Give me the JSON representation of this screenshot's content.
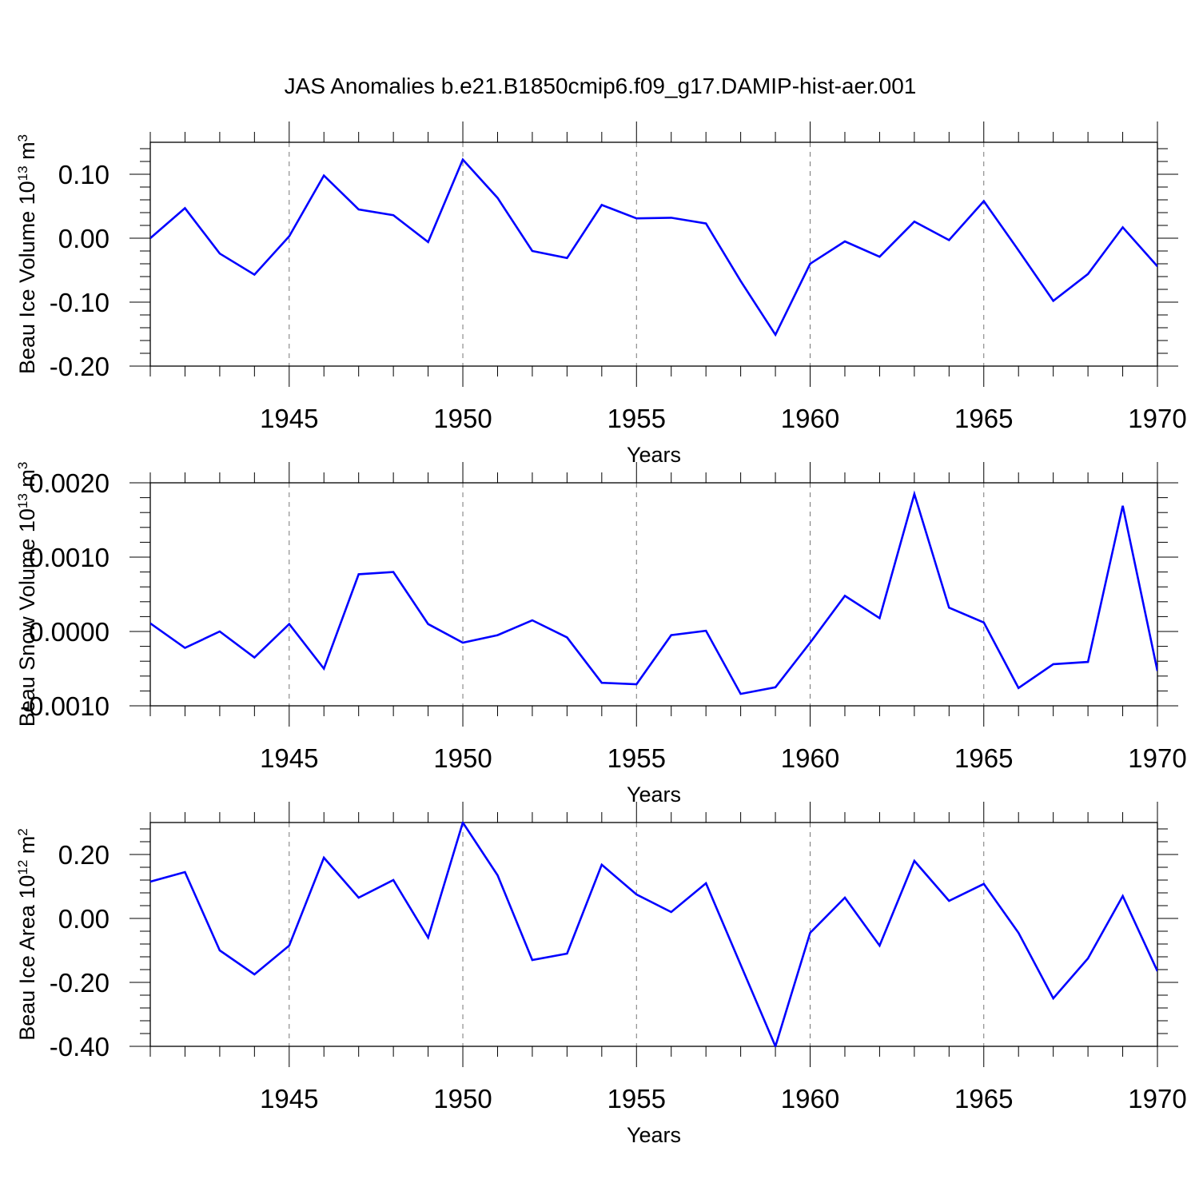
{
  "title": "JAS Anomalies b.e21.B1850cmip6.f09_g17.DAMIP-hist-aer.001",
  "line_color": "#0000ff",
  "chart_data": [
    {
      "type": "line",
      "title": "JAS Anomalies b.e21.B1850cmip6.f09_g17.DAMIP-hist-aer.001",
      "xlabel": "Years",
      "ylabel": {
        "text": "Beau Ice Volume 10",
        "exp": "13",
        "unit": " m",
        "unit_exp": "3"
      },
      "xlim": [
        1941,
        1970
      ],
      "ylim": [
        -0.2,
        0.15
      ],
      "yticks": [
        0.1,
        0.0,
        -0.1,
        -0.2
      ],
      "ytick_labels": [
        "0.10",
        "0.00",
        "-0.10",
        "-0.20"
      ],
      "ytick_minor": 0.02,
      "xticks": [
        1945,
        1950,
        1955,
        1960,
        1965,
        1970
      ],
      "xtick_labels": [
        "1945",
        "1950",
        "1955",
        "1960",
        "1965",
        "1970"
      ],
      "grid": "vertical dashed at major x ticks",
      "x": [
        1941,
        1942,
        1943,
        1944,
        1945,
        1946,
        1947,
        1948,
        1949,
        1950,
        1951,
        1952,
        1953,
        1954,
        1955,
        1956,
        1957,
        1958,
        1959,
        1960,
        1961,
        1962,
        1963,
        1964,
        1965,
        1966,
        1967,
        1968,
        1969,
        1970
      ],
      "series": [
        {
          "name": "Beau Ice Volume",
          "values": [
            0.0,
            0.047,
            -0.024,
            -0.057,
            0.003,
            0.098,
            0.045,
            0.036,
            -0.006,
            0.123,
            0.063,
            -0.02,
            -0.031,
            0.052,
            0.031,
            0.032,
            0.023,
            -0.067,
            -0.151,
            -0.04,
            -0.005,
            -0.029,
            0.026,
            -0.003,
            0.058,
            -0.019,
            -0.098,
            -0.056,
            0.017,
            -0.044
          ]
        }
      ]
    },
    {
      "type": "line",
      "xlabel": "Years",
      "ylabel": {
        "text": "Beau Snow Volume 10",
        "exp": "13",
        "unit": " m",
        "unit_exp": "3"
      },
      "xlim": [
        1941,
        1970
      ],
      "ylim": [
        -0.001,
        0.002
      ],
      "yticks": [
        0.002,
        0.001,
        0.0,
        -0.001
      ],
      "ytick_labels": [
        "0.0020",
        "0.0010",
        "0.0000",
        "-0.0010"
      ],
      "ytick_minor": 0.0002,
      "xticks": [
        1945,
        1950,
        1955,
        1960,
        1965,
        1970
      ],
      "xtick_labels": [
        "1945",
        "1950",
        "1955",
        "1960",
        "1965",
        "1970"
      ],
      "grid": "vertical dashed at major x ticks",
      "x": [
        1941,
        1942,
        1943,
        1944,
        1945,
        1946,
        1947,
        1948,
        1949,
        1950,
        1951,
        1952,
        1953,
        1954,
        1955,
        1956,
        1957,
        1958,
        1959,
        1960,
        1961,
        1962,
        1963,
        1964,
        1965,
        1966,
        1967,
        1968,
        1969,
        1970
      ],
      "series": [
        {
          "name": "Beau Snow Volume",
          "values": [
            0.00011,
            -0.00022,
            0.0,
            -0.00035,
            0.0001,
            -0.0005,
            0.00077,
            0.0008,
            0.0001,
            -0.00015,
            -5e-05,
            0.00015,
            -8e-05,
            -0.00069,
            -0.00071,
            -5e-05,
            1e-05,
            -0.00084,
            -0.00075,
            -0.00015,
            0.00048,
            0.00018,
            0.00185,
            0.00032,
            0.00012,
            -0.00076,
            -0.00044,
            -0.00041,
            0.00169,
            -0.00053
          ]
        }
      ]
    },
    {
      "type": "line",
      "xlabel": "Years",
      "ylabel": {
        "text": "Beau Ice Area 10",
        "exp": "12",
        "unit": " m",
        "unit_exp": "2"
      },
      "xlim": [
        1941,
        1970
      ],
      "ylim": [
        -0.4,
        0.3
      ],
      "yticks": [
        0.2,
        0.0,
        -0.2,
        -0.4
      ],
      "ytick_labels": [
        "0.20",
        "0.00",
        "-0.20",
        "-0.40"
      ],
      "ytick_minor": 0.04,
      "xticks": [
        1945,
        1950,
        1955,
        1960,
        1965,
        1970
      ],
      "xtick_labels": [
        "1945",
        "1950",
        "1955",
        "1960",
        "1965",
        "1970"
      ],
      "grid": "vertical dashed at major x ticks",
      "x": [
        1941,
        1942,
        1943,
        1944,
        1945,
        1946,
        1947,
        1948,
        1949,
        1950,
        1951,
        1952,
        1953,
        1954,
        1955,
        1956,
        1957,
        1958,
        1959,
        1960,
        1961,
        1962,
        1963,
        1964,
        1965,
        1966,
        1967,
        1968,
        1969,
        1970
      ],
      "series": [
        {
          "name": "Beau Ice Area",
          "values": [
            0.115,
            0.145,
            -0.1,
            -0.175,
            -0.085,
            0.19,
            0.065,
            0.12,
            -0.06,
            0.3,
            0.135,
            -0.13,
            -0.11,
            0.168,
            0.075,
            0.02,
            0.11,
            -0.145,
            -0.4,
            -0.045,
            0.065,
            -0.085,
            0.18,
            0.055,
            0.108,
            -0.045,
            -0.25,
            -0.125,
            0.07,
            -0.165
          ]
        }
      ]
    }
  ]
}
